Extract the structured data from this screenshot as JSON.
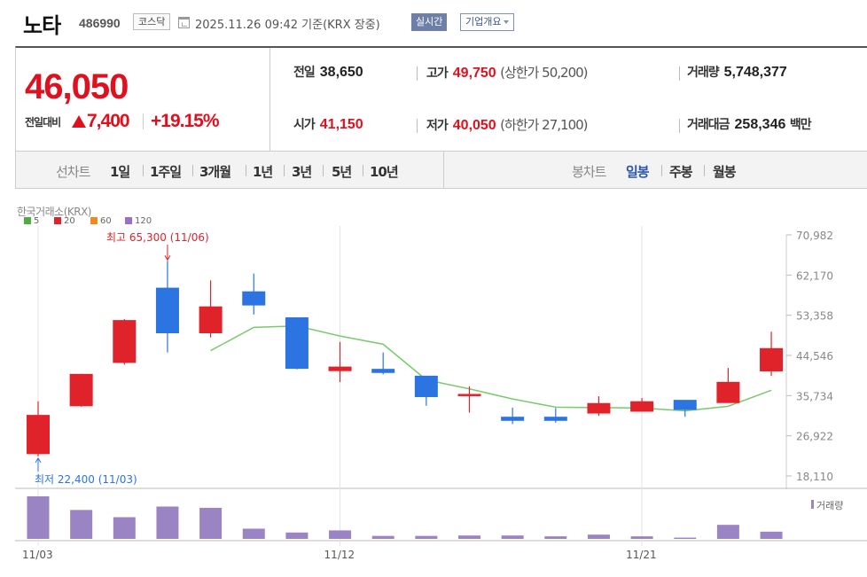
{
  "header": {
    "name": "노타",
    "code": "486990",
    "market": "코스닥",
    "date": "2025.11.26 09:42  기준(KRX 장중)",
    "realtime": "실시간",
    "company": "기업개요"
  },
  "quote": {
    "price": "46,050",
    "change_label": "전일대비",
    "change": "7,400",
    "change_pct": "+19.15%",
    "prev_label": "전일",
    "prev": "38,650",
    "high_label": "고가",
    "high": "49,750",
    "upper_limit": "(상한가 50,200)",
    "volume_label": "거래량",
    "volume": "5,748,377",
    "open_label": "시가",
    "open": "41,150",
    "low_label": "저가",
    "low": "40,050",
    "lower_limit": "(하한가 27,100)",
    "amount_label": "거래대금",
    "amount": "258,346",
    "amount_unit": "백만"
  },
  "tabs": {
    "line_label": "선차트",
    "line": [
      "1일",
      "1주일",
      "3개월",
      "1년",
      "3년",
      "5년",
      "10년"
    ],
    "candle_label": "봉차트",
    "candle": [
      "일봉",
      "주봉",
      "월봉"
    ],
    "active_candle": 0
  },
  "colors": {
    "up": "#e0232a",
    "down": "#2b74e2",
    "ma5": "#7ac96e",
    "volume": "#9b84c4",
    "accent_red": "#e0101f"
  },
  "chart_data": {
    "type": "candlestick",
    "title": "한국거래소(KRX)",
    "legend": [
      {
        "name": "5",
        "color": "#4cae3f"
      },
      {
        "name": "20",
        "color": "#e0232a"
      },
      {
        "name": "60",
        "color": "#f08a1c"
      },
      {
        "name": "120",
        "color": "#9b6fc9"
      }
    ],
    "y_ticks": [
      "70,982",
      "62,170",
      "53,358",
      "44,546",
      "35,734",
      "26,922",
      "18,110"
    ],
    "ylim": [
      18110,
      70982
    ],
    "x_ticks": [
      "11/03",
      "11/12",
      "11/21"
    ],
    "volume_label": "거래량",
    "high_note": "최고 65,300 (11/06)",
    "low_note": "최저 22,400 (11/03)",
    "candles": [
      {
        "date": "11/03",
        "o": 23000,
        "h": 34500,
        "l": 22400,
        "c": 31400
      },
      {
        "date": "11/04",
        "o": 33500,
        "h": 40500,
        "l": 33300,
        "c": 40400
      },
      {
        "date": "11/05",
        "o": 43000,
        "h": 52500,
        "l": 42500,
        "c": 52200
      },
      {
        "date": "11/06",
        "o": 59300,
        "h": 65300,
        "l": 45200,
        "c": 49500
      },
      {
        "date": "11/07",
        "o": 49500,
        "h": 61000,
        "l": 48500,
        "c": 55200
      },
      {
        "date": "11/10",
        "o": 58500,
        "h": 62500,
        "l": 53500,
        "c": 55600
      },
      {
        "date": "11/11",
        "o": 52800,
        "h": 52800,
        "l": 41500,
        "c": 41700
      },
      {
        "date": "11/12",
        "o": 41200,
        "h": 47500,
        "l": 38700,
        "c": 42000
      },
      {
        "date": "11/13",
        "o": 41500,
        "h": 45200,
        "l": 40400,
        "c": 40800
      },
      {
        "date": "11/14",
        "o": 40000,
        "h": 40000,
        "l": 33500,
        "c": 35500
      },
      {
        "date": "11/17",
        "o": 36000,
        "h": 37800,
        "l": 32000,
        "c": 36000
      },
      {
        "date": "11/18",
        "o": 31000,
        "h": 33100,
        "l": 29500,
        "c": 30300
      },
      {
        "date": "11/19",
        "o": 31000,
        "h": 33000,
        "l": 29800,
        "c": 30300
      },
      {
        "date": "11/20",
        "o": 31900,
        "h": 35600,
        "l": 31300,
        "c": 34000
      },
      {
        "date": "11/21",
        "o": 32300,
        "h": 35200,
        "l": 32300,
        "c": 34400
      },
      {
        "date": "11/24",
        "o": 34700,
        "h": 34700,
        "l": 31100,
        "c": 32700
      },
      {
        "date": "11/25",
        "o": 34200,
        "h": 41800,
        "l": 34200,
        "c": 38650
      },
      {
        "date": "11/26",
        "o": 41150,
        "h": 49750,
        "l": 40050,
        "c": 46050
      }
    ],
    "ma5": [
      null,
      null,
      null,
      null,
      45600,
      50700,
      51000,
      48800,
      47000,
      39200,
      37200,
      35000,
      33200,
      33100,
      33000,
      32400,
      33400,
      36900
    ],
    "volume": [
      100,
      68,
      51,
      76,
      73,
      24,
      15,
      20,
      7,
      7,
      8,
      8,
      6,
      10,
      6,
      3,
      33,
      17
    ]
  }
}
